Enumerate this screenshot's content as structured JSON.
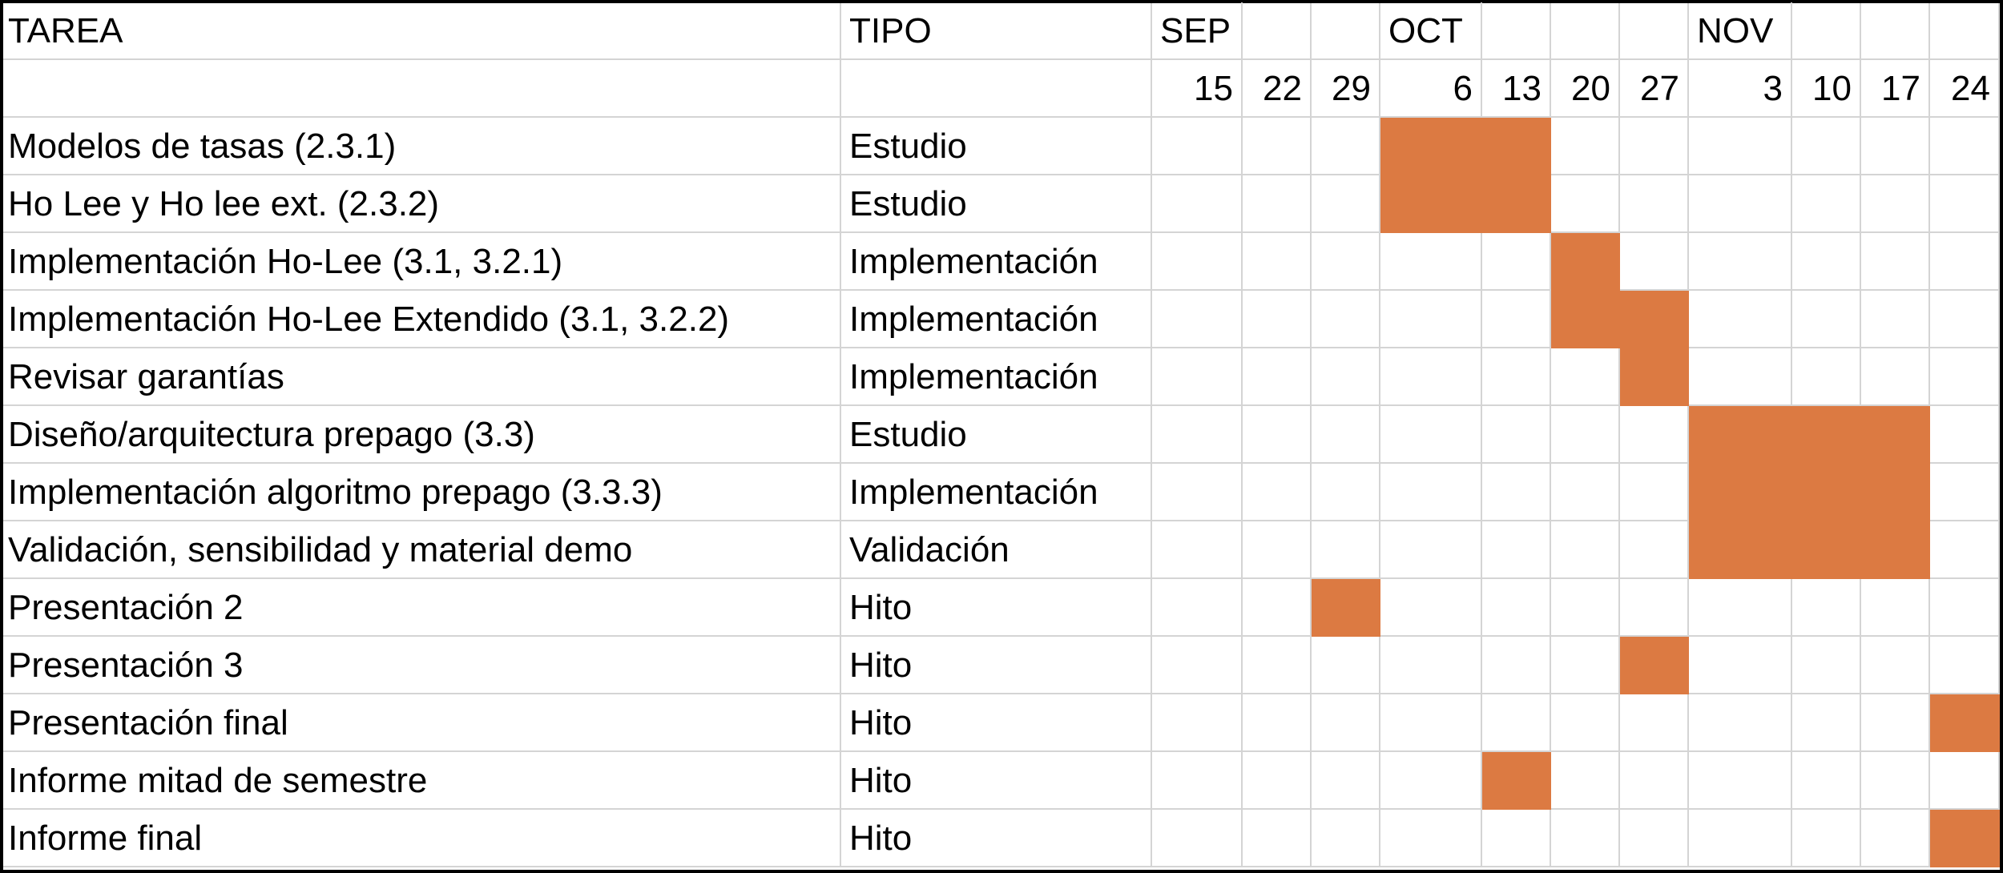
{
  "chart_data": {
    "type": "table",
    "headers": {
      "task": "TAREA",
      "type": "TIPO"
    },
    "months": [
      {
        "label": "SEP",
        "start_week": 0
      },
      {
        "label": "OCT",
        "start_week": 3
      },
      {
        "label": "NOV",
        "start_week": 7
      }
    ],
    "weeks": [
      "15",
      "22",
      "29",
      "6",
      "13",
      "20",
      "27",
      "3",
      "10",
      "17",
      "24"
    ],
    "bar_color": "#dc7a42",
    "tasks": [
      {
        "name": "Modelos de tasas (2.3.1)",
        "type": "Estudio",
        "weeks": [
          "6",
          "13"
        ]
      },
      {
        "name": "Ho Lee y Ho lee ext. (2.3.2)",
        "type": "Estudio",
        "weeks": [
          "6",
          "13"
        ]
      },
      {
        "name": "Implementación Ho-Lee (3.1, 3.2.1)",
        "type": "Implementación",
        "weeks": [
          "20"
        ]
      },
      {
        "name": "Implementación Ho-Lee Extendido (3.1, 3.2.2)",
        "type": "Implementación",
        "weeks": [
          "20",
          "27"
        ]
      },
      {
        "name": "Revisar garantías",
        "type": "Implementación",
        "weeks": [
          "27"
        ]
      },
      {
        "name": "Diseño/arquitectura prepago (3.3)",
        "type": "Estudio",
        "weeks": [
          "3",
          "10",
          "17"
        ]
      },
      {
        "name": "Implementación algoritmo prepago (3.3.3)",
        "type": "Implementación",
        "weeks": [
          "3",
          "10",
          "17"
        ]
      },
      {
        "name": "Validación, sensibilidad y material demo",
        "type": "Validación",
        "weeks": [
          "3",
          "10",
          "17"
        ]
      },
      {
        "name": "Presentación 2",
        "type": "Hito",
        "weeks": [
          "29"
        ]
      },
      {
        "name": "Presentación 3",
        "type": "Hito",
        "weeks": [
          "27"
        ]
      },
      {
        "name": "Presentación final",
        "type": "Hito",
        "weeks": [
          "24"
        ]
      },
      {
        "name": "Informe mitad de semestre",
        "type": "Hito",
        "weeks": [
          "13"
        ]
      },
      {
        "name": "Informe final",
        "type": "Hito",
        "weeks": [
          "24"
        ]
      }
    ]
  }
}
